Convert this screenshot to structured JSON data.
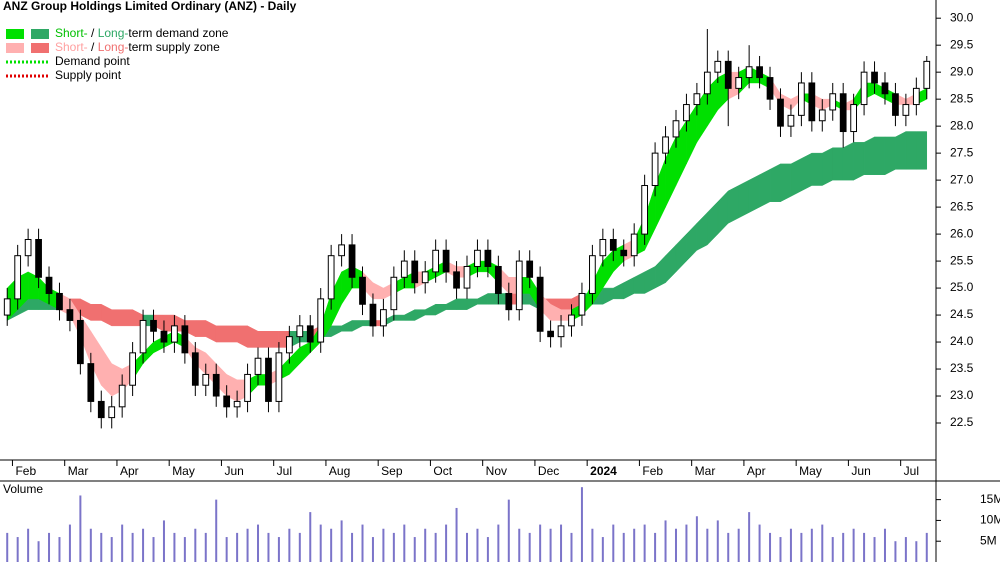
{
  "chart_data": {
    "type": "candlestick",
    "title": "ANZ Group Holdings Limited Ordinary (ANZ) - Daily",
    "candle_color": "#000000",
    "categories": [
      null,
      "Feb",
      null,
      null,
      null,
      null,
      "Mar",
      null,
      null,
      null,
      null,
      "Apr",
      null,
      null,
      null,
      null,
      "May",
      null,
      null,
      null,
      null,
      "Jun",
      null,
      null,
      null,
      null,
      "Jul",
      null,
      null,
      null,
      null,
      "Aug",
      null,
      null,
      null,
      null,
      "Sep",
      null,
      null,
      null,
      null,
      "Oct",
      null,
      null,
      null,
      null,
      "Nov",
      null,
      null,
      null,
      null,
      "Dec",
      null,
      null,
      null,
      null,
      "2024",
      null,
      null,
      null,
      null,
      "Feb",
      null,
      null,
      null,
      null,
      "Mar",
      null,
      null,
      null,
      null,
      "Apr",
      null,
      null,
      null,
      null,
      "May",
      null,
      null,
      null,
      null,
      "Jun",
      null,
      null,
      null,
      null,
      "Jul",
      null,
      null
    ],
    "open": [
      24.5,
      24.8,
      25.6,
      25.9,
      25.2,
      24.9,
      24.6,
      24.4,
      23.6,
      22.9,
      22.6,
      22.8,
      23.2,
      23.8,
      24.4,
      24.2,
      24.0,
      24.3,
      23.8,
      23.2,
      23.4,
      23.0,
      22.8,
      22.9,
      23.4,
      23.7,
      22.9,
      23.8,
      24.1,
      24.3,
      24.0,
      24.8,
      25.6,
      25.8,
      25.2,
      24.7,
      24.3,
      24.6,
      25.2,
      25.5,
      25.1,
      25.3,
      25.7,
      25.3,
      25.0,
      25.4,
      25.7,
      25.4,
      24.9,
      24.6,
      25.5,
      25.2,
      24.2,
      24.1,
      24.3,
      24.5,
      24.9,
      25.6,
      25.9,
      25.7,
      25.6,
      26.0,
      26.9,
      27.5,
      27.8,
      28.1,
      28.4,
      28.6,
      29.0,
      29.2,
      28.7,
      28.9,
      29.1,
      28.9,
      28.5,
      28.0,
      28.2,
      28.8,
      28.1,
      28.3,
      28.6,
      27.9,
      28.4,
      29.0,
      28.8,
      28.6,
      28.2,
      28.4,
      28.7
    ],
    "high": [
      25.0,
      25.8,
      26.1,
      26.1,
      25.4,
      25.1,
      24.8,
      24.6,
      23.8,
      23.1,
      23.0,
      23.4,
      24.0,
      24.6,
      24.6,
      24.4,
      24.5,
      24.5,
      24.0,
      23.6,
      23.6,
      23.2,
      23.1,
      23.6,
      23.9,
      23.9,
      24.0,
      24.3,
      24.5,
      24.5,
      25.0,
      25.8,
      26.0,
      26.0,
      25.4,
      24.9,
      24.8,
      25.4,
      25.7,
      25.7,
      25.5,
      25.9,
      25.9,
      25.5,
      25.6,
      25.9,
      25.9,
      25.6,
      25.1,
      25.7,
      25.7,
      25.4,
      24.4,
      24.5,
      24.7,
      25.1,
      25.8,
      26.1,
      26.1,
      25.9,
      26.2,
      27.1,
      27.7,
      28.0,
      28.3,
      28.6,
      28.8,
      29.8,
      29.4,
      29.4,
      29.1,
      29.5,
      29.3,
      29.1,
      28.7,
      28.4,
      29.0,
      29.0,
      28.5,
      28.8,
      28.8,
      28.6,
      29.2,
      29.2,
      29.0,
      28.8,
      28.6,
      28.9,
      29.3
    ],
    "low": [
      24.3,
      24.6,
      25.4,
      25.0,
      24.7,
      24.4,
      24.2,
      23.4,
      22.7,
      22.4,
      22.4,
      22.6,
      23.0,
      23.6,
      24.0,
      23.8,
      23.8,
      23.6,
      23.0,
      23.0,
      22.8,
      22.6,
      22.6,
      22.7,
      23.2,
      22.7,
      22.7,
      23.6,
      23.9,
      23.8,
      23.8,
      24.6,
      25.4,
      25.0,
      24.5,
      24.1,
      24.1,
      24.4,
      25.0,
      24.9,
      24.9,
      25.1,
      25.1,
      24.8,
      24.8,
      25.2,
      25.2,
      24.7,
      24.4,
      24.4,
      25.0,
      24.0,
      23.9,
      23.9,
      24.1,
      24.3,
      24.7,
      25.4,
      25.5,
      25.4,
      25.4,
      25.8,
      26.7,
      27.3,
      27.6,
      27.9,
      28.2,
      28.4,
      28.8,
      28.0,
      28.5,
      28.7,
      28.7,
      28.3,
      27.8,
      27.8,
      28.0,
      27.9,
      27.9,
      28.1,
      27.6,
      27.7,
      28.2,
      28.6,
      28.4,
      28.0,
      28.0,
      28.2,
      28.5
    ],
    "close": [
      24.8,
      25.6,
      25.9,
      25.2,
      24.9,
      24.6,
      24.4,
      23.6,
      22.9,
      22.6,
      22.8,
      23.2,
      23.8,
      24.4,
      24.2,
      24.0,
      24.3,
      23.8,
      23.2,
      23.4,
      23.0,
      22.8,
      22.9,
      23.4,
      23.7,
      22.9,
      23.8,
      24.1,
      24.3,
      24.0,
      24.8,
      25.6,
      25.8,
      25.2,
      24.7,
      24.3,
      24.6,
      25.2,
      25.5,
      25.1,
      25.3,
      25.7,
      25.3,
      25.0,
      25.4,
      25.7,
      25.4,
      24.9,
      24.6,
      25.5,
      25.2,
      24.2,
      24.1,
      24.3,
      24.5,
      24.9,
      25.6,
      25.9,
      25.7,
      25.6,
      26.0,
      26.9,
      27.5,
      27.8,
      28.1,
      28.4,
      28.6,
      29.0,
      29.2,
      28.7,
      28.9,
      29.1,
      28.9,
      28.5,
      28.0,
      28.2,
      28.8,
      28.1,
      28.3,
      28.6,
      27.9,
      28.4,
      29.0,
      28.8,
      28.6,
      28.2,
      28.4,
      28.7,
      29.2
    ],
    "ylim": [
      22.0,
      30.3
    ],
    "yticks": [
      22.5,
      {
        "value": 23,
        "label": "23.0"
      },
      23.5,
      {
        "value": 24,
        "label": "24.0"
      },
      24.5,
      {
        "value": 25,
        "label": "25.0"
      },
      25.5,
      {
        "value": 26,
        "label": "26.0"
      },
      26.5,
      {
        "value": 27,
        "label": "27.0"
      },
      27.5,
      {
        "value": 28,
        "label": "28.0"
      },
      28.5,
      {
        "value": 29,
        "label": "29.0"
      },
      29.5,
      {
        "value": 30,
        "label": "30.0"
      }
    ],
    "long_zone": {
      "demand_color": "#2ea865",
      "supply_color": "#f07070",
      "upper": [
        24.6,
        24.7,
        24.8,
        24.8,
        24.8,
        24.8,
        24.8,
        24.8,
        24.7,
        24.7,
        24.6,
        24.6,
        24.6,
        24.5,
        24.5,
        24.5,
        24.5,
        24.4,
        24.4,
        24.4,
        24.3,
        24.3,
        24.3,
        24.3,
        24.2,
        24.2,
        24.2,
        24.2,
        24.2,
        24.2,
        24.3,
        24.3,
        24.3,
        24.4,
        24.4,
        24.4,
        24.4,
        24.5,
        24.5,
        24.6,
        24.6,
        24.7,
        24.7,
        24.8,
        24.8,
        24.8,
        24.9,
        24.9,
        24.9,
        24.9,
        24.9,
        24.8,
        24.8,
        24.8,
        24.8,
        24.9,
        24.9,
        25.0,
        25.0,
        25.1,
        25.2,
        25.3,
        25.4,
        25.6,
        25.8,
        26.0,
        26.2,
        26.4,
        26.6,
        26.8,
        26.9,
        27.0,
        27.1,
        27.2,
        27.3,
        27.3,
        27.4,
        27.5,
        27.5,
        27.6,
        27.6,
        27.7,
        27.7,
        27.8,
        27.8,
        27.8,
        27.9,
        27.9,
        27.9
      ],
      "lower": [
        24.4,
        24.5,
        24.6,
        24.6,
        24.6,
        24.6,
        24.6,
        24.5,
        24.4,
        24.4,
        24.3,
        24.3,
        24.3,
        24.3,
        24.3,
        24.2,
        24.2,
        24.2,
        24.1,
        24.1,
        24.0,
        24.0,
        24.0,
        23.9,
        23.9,
        23.9,
        23.9,
        23.9,
        24.0,
        24.0,
        24.1,
        24.1,
        24.2,
        24.2,
        24.3,
        24.3,
        24.3,
        24.4,
        24.4,
        24.4,
        24.5,
        24.5,
        24.6,
        24.6,
        24.6,
        24.7,
        24.7,
        24.7,
        24.7,
        24.7,
        24.7,
        24.6,
        24.6,
        24.6,
        24.6,
        24.6,
        24.7,
        24.7,
        24.8,
        24.8,
        24.9,
        24.9,
        25.0,
        25.1,
        25.3,
        25.5,
        25.7,
        25.8,
        26.0,
        26.2,
        26.3,
        26.4,
        26.5,
        26.6,
        26.6,
        26.7,
        26.8,
        26.9,
        26.9,
        27.0,
        27.0,
        27.0,
        27.1,
        27.1,
        27.1,
        27.2,
        27.2,
        27.2,
        27.2
      ]
    },
    "short_zone": {
      "demand_color": "#00e000",
      "supply_color": "#ffb0b0",
      "upper": [
        25.0,
        25.2,
        25.3,
        25.2,
        25.0,
        24.9,
        24.8,
        24.5,
        24.2,
        23.9,
        23.6,
        23.5,
        23.6,
        23.8,
        24.0,
        24.1,
        24.2,
        24.1,
        23.9,
        23.8,
        23.6,
        23.4,
        23.3,
        23.3,
        23.4,
        23.4,
        23.5,
        23.7,
        23.9,
        24.0,
        24.3,
        24.9,
        25.3,
        25.4,
        25.3,
        25.1,
        25.0,
        25.1,
        25.2,
        25.3,
        25.3,
        25.4,
        25.5,
        25.4,
        25.4,
        25.5,
        25.5,
        25.4,
        25.2,
        25.2,
        25.2,
        24.9,
        24.7,
        24.6,
        24.6,
        24.7,
        25.1,
        25.5,
        25.7,
        25.8,
        25.9,
        26.3,
        26.9,
        27.4,
        27.8,
        28.1,
        28.4,
        28.7,
        28.9,
        29.0,
        29.0,
        29.1,
        29.0,
        28.9,
        28.6,
        28.5,
        28.6,
        28.6,
        28.5,
        28.5,
        28.4,
        28.5,
        28.8,
        28.8,
        28.7,
        28.6,
        28.5,
        28.6,
        28.7
      ],
      "lower": [
        24.4,
        24.6,
        24.8,
        24.8,
        24.7,
        24.6,
        24.5,
        24.1,
        23.6,
        23.2,
        23.0,
        23.1,
        23.3,
        23.6,
        23.8,
        23.9,
        24.0,
        23.9,
        23.6,
        23.4,
        23.2,
        23.0,
        22.9,
        23.0,
        23.2,
        23.2,
        23.3,
        23.4,
        23.6,
        23.8,
        24.0,
        24.3,
        24.7,
        25.0,
        25.0,
        24.8,
        24.8,
        24.9,
        25.0,
        25.0,
        25.1,
        25.2,
        25.3,
        25.2,
        25.2,
        25.3,
        25.3,
        25.1,
        24.9,
        24.9,
        24.9,
        24.6,
        24.4,
        24.4,
        24.4,
        24.5,
        24.7,
        25.0,
        25.3,
        25.5,
        25.6,
        25.7,
        26.1,
        26.5,
        26.9,
        27.3,
        27.7,
        28.0,
        28.3,
        28.5,
        28.6,
        28.8,
        28.8,
        28.7,
        28.4,
        28.3,
        28.5,
        28.4,
        28.3,
        28.4,
        28.3,
        28.3,
        28.5,
        28.6,
        28.5,
        28.4,
        28.4,
        28.4,
        28.5
      ]
    },
    "volume": {
      "label": "Volume",
      "color": "#7b74c9",
      "values": [
        7,
        6,
        8,
        5,
        7,
        6,
        9,
        16,
        8,
        7,
        6,
        9,
        7,
        8,
        6,
        10,
        7,
        6,
        8,
        7,
        15,
        6,
        7,
        8,
        9,
        7,
        6,
        8,
        7,
        12,
        9,
        8,
        10,
        7,
        9,
        6,
        8,
        7,
        9,
        6,
        8,
        7,
        9,
        13,
        7,
        8,
        6,
        9,
        15,
        8,
        7,
        9,
        8,
        9,
        7,
        18,
        8,
        6,
        9,
        7,
        8,
        9,
        7,
        10,
        8,
        9,
        11,
        8,
        10,
        7,
        8,
        12,
        9,
        7,
        6,
        8,
        7,
        8,
        9,
        6,
        7,
        8,
        7,
        6,
        8,
        5,
        6,
        5,
        7
      ],
      "ylim": [
        0,
        19
      ],
      "yticks": [
        {
          "value": 5,
          "label": "5M"
        },
        {
          "value": 10,
          "label": "10M"
        },
        {
          "value": 15,
          "label": "15M"
        }
      ]
    },
    "legend": [
      {
        "swatches": [
          "#00e000",
          "#2ea865"
        ],
        "parts": [
          {
            "text": "Short-",
            "color": "#00c000"
          },
          {
            "text": " / ",
            "color": "#000000"
          },
          {
            "text": "Long-",
            "color": "#2ea865"
          },
          {
            "text": "term demand zone",
            "color": "#000000"
          }
        ]
      },
      {
        "swatches": [
          "#ffb0b0",
          "#f07070"
        ],
        "parts": [
          {
            "text": "Short-",
            "color": "#ffa0a0"
          },
          {
            "text": " / ",
            "color": "#000000"
          },
          {
            "text": "Long-",
            "color": "#f07070"
          },
          {
            "text": "term supply zone",
            "color": "#000000"
          }
        ]
      },
      {
        "line": "#00e000",
        "parts": [
          {
            "text": "Demand point",
            "color": "#000000"
          }
        ]
      },
      {
        "line": "#e00000",
        "parts": [
          {
            "text": "Supply point",
            "color": "#000000"
          }
        ]
      }
    ]
  }
}
